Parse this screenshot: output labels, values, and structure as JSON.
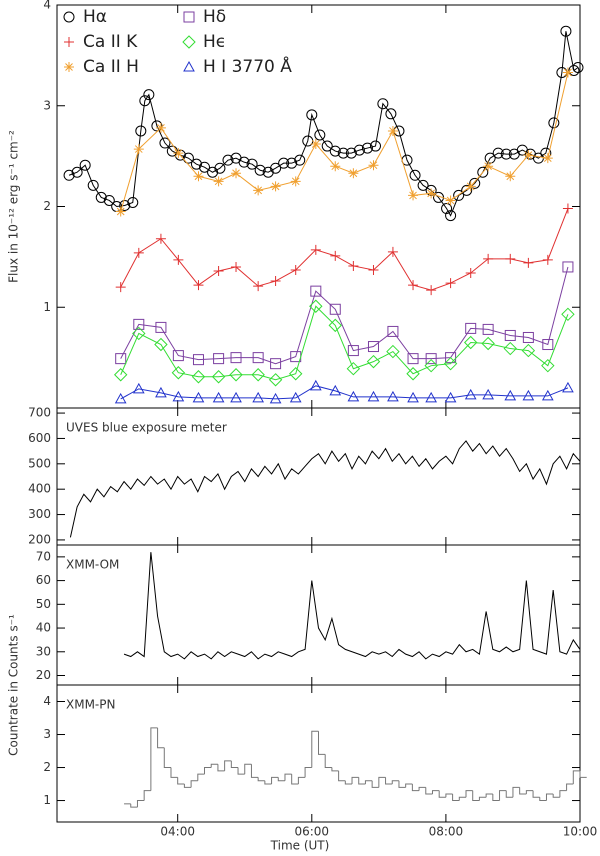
{
  "x_axis": {
    "label": "Time (UT)",
    "xlim": [
      2.2,
      10.0
    ],
    "xticks": [
      {
        "value": 4,
        "label": "04:00"
      },
      {
        "value": 6,
        "label": "06:00"
      },
      {
        "value": 8,
        "label": "08:00"
      },
      {
        "value": 10,
        "label": "10:00"
      }
    ]
  },
  "chart_data": [
    {
      "type": "line",
      "ylabel": "Flux in 10⁻¹² erg s⁻¹ cm⁻²",
      "ylim": [
        0,
        4
      ],
      "yticks": [
        1,
        2,
        3,
        4
      ],
      "legend": "upper left",
      "series": [
        {
          "name": "Hα",
          "color": "#000000",
          "marker": "circle",
          "x": [
            2.38,
            2.5,
            2.62,
            2.74,
            2.86,
            2.98,
            3.09,
            3.21,
            3.33,
            3.45,
            3.51,
            3.57,
            3.69,
            3.81,
            3.92,
            4.04,
            4.16,
            4.28,
            4.4,
            4.52,
            4.63,
            4.75,
            4.87,
            4.99,
            5.11,
            5.23,
            5.35,
            5.46,
            5.58,
            5.7,
            5.82,
            5.94,
            6.0,
            6.12,
            6.23,
            6.35,
            6.47,
            6.59,
            6.71,
            6.83,
            6.95,
            7.06,
            7.18,
            7.3,
            7.42,
            7.54,
            7.66,
            7.78,
            7.89,
            8.01,
            8.07,
            8.19,
            8.31,
            8.43,
            8.55,
            8.66,
            8.78,
            8.9,
            9.02,
            9.14,
            9.26,
            9.38,
            9.49,
            9.61,
            9.73,
            9.79,
            9.91,
            9.97
          ],
          "values": [
            2.31,
            2.34,
            2.41,
            2.21,
            2.09,
            2.06,
            2.0,
            2.01,
            2.04,
            2.75,
            3.05,
            3.11,
            2.8,
            2.63,
            2.55,
            2.51,
            2.48,
            2.42,
            2.39,
            2.34,
            2.38,
            2.46,
            2.48,
            2.44,
            2.42,
            2.36,
            2.34,
            2.38,
            2.43,
            2.43,
            2.46,
            2.65,
            2.91,
            2.71,
            2.6,
            2.55,
            2.53,
            2.53,
            2.56,
            2.58,
            2.6,
            3.02,
            2.92,
            2.75,
            2.46,
            2.31,
            2.21,
            2.16,
            2.09,
            1.98,
            1.91,
            2.11,
            2.16,
            2.23,
            2.34,
            2.48,
            2.53,
            2.52,
            2.52,
            2.56,
            2.52,
            2.48,
            2.53,
            2.83,
            3.33,
            3.74,
            3.35,
            3.38
          ]
        },
        {
          "name": "Ca II K",
          "color": "#e03030",
          "marker": "plus",
          "x": [
            3.15,
            3.42,
            3.75,
            4.01,
            4.31,
            4.61,
            4.87,
            5.2,
            5.46,
            5.76,
            6.06,
            6.35,
            6.62,
            6.92,
            7.21,
            7.51,
            7.78,
            8.07,
            8.37,
            8.63,
            8.96,
            9.23,
            9.52,
            9.82
          ],
          "values": [
            1.2,
            1.54,
            1.68,
            1.47,
            1.22,
            1.36,
            1.4,
            1.21,
            1.26,
            1.37,
            1.57,
            1.51,
            1.41,
            1.37,
            1.55,
            1.22,
            1.17,
            1.24,
            1.34,
            1.48,
            1.48,
            1.44,
            1.47,
            1.98
          ]
        },
        {
          "name": "Ca II H",
          "color": "#f0a030",
          "marker": "asterisk",
          "x": [
            3.15,
            3.42,
            3.75,
            4.01,
            4.31,
            4.61,
            4.87,
            5.2,
            5.46,
            5.76,
            6.06,
            6.35,
            6.62,
            6.92,
            7.21,
            7.51,
            7.78,
            8.07,
            8.37,
            8.63,
            8.96,
            9.23,
            9.52,
            9.82
          ],
          "values": [
            1.95,
            2.57,
            2.78,
            2.53,
            2.3,
            2.25,
            2.33,
            2.16,
            2.2,
            2.25,
            2.62,
            2.4,
            2.33,
            2.41,
            2.75,
            2.11,
            2.13,
            2.06,
            2.2,
            2.4,
            2.3,
            2.51,
            2.48,
            3.33
          ]
        },
        {
          "name": "Hδ",
          "color": "#7b3fa0",
          "marker": "square",
          "x": [
            3.15,
            3.42,
            3.75,
            4.01,
            4.31,
            4.61,
            4.87,
            5.2,
            5.46,
            5.76,
            6.06,
            6.35,
            6.62,
            6.92,
            7.21,
            7.51,
            7.78,
            8.07,
            8.37,
            8.63,
            8.96,
            9.23,
            9.52,
            9.82
          ],
          "values": [
            0.49,
            0.83,
            0.8,
            0.52,
            0.48,
            0.49,
            0.5,
            0.5,
            0.44,
            0.51,
            1.16,
            0.98,
            0.57,
            0.61,
            0.76,
            0.49,
            0.49,
            0.5,
            0.79,
            0.78,
            0.72,
            0.7,
            0.63,
            1.4
          ]
        },
        {
          "name": "Hϵ",
          "color": "#33dd33",
          "marker": "diamond",
          "x": [
            3.15,
            3.42,
            3.75,
            4.01,
            4.31,
            4.61,
            4.87,
            5.2,
            5.46,
            5.76,
            6.06,
            6.35,
            6.62,
            6.92,
            7.21,
            7.51,
            7.78,
            8.07,
            8.37,
            8.63,
            8.96,
            9.23,
            9.52,
            9.82
          ],
          "values": [
            0.33,
            0.74,
            0.63,
            0.35,
            0.31,
            0.31,
            0.33,
            0.33,
            0.28,
            0.34,
            1.01,
            0.82,
            0.39,
            0.46,
            0.56,
            0.34,
            0.42,
            0.44,
            0.65,
            0.64,
            0.59,
            0.57,
            0.42,
            0.93
          ]
        },
        {
          "name": "H I 3770 Å",
          "color": "#2233cc",
          "marker": "triangle",
          "x": [
            3.15,
            3.42,
            3.75,
            4.01,
            4.31,
            4.61,
            4.87,
            5.2,
            5.46,
            5.76,
            6.06,
            6.35,
            6.62,
            6.92,
            7.21,
            7.51,
            7.78,
            8.07,
            8.37,
            8.63,
            8.96,
            9.23,
            9.52,
            9.82
          ],
          "values": [
            0.09,
            0.19,
            0.15,
            0.11,
            0.1,
            0.1,
            0.1,
            0.1,
            0.09,
            0.1,
            0.22,
            0.17,
            0.11,
            0.11,
            0.11,
            0.1,
            0.1,
            0.1,
            0.13,
            0.13,
            0.12,
            0.12,
            0.12,
            0.2
          ]
        }
      ]
    },
    {
      "type": "line",
      "annotation": "UVES blue exposure meter",
      "ylim": [
        180,
        720
      ],
      "yticks": [
        200,
        300,
        400,
        500,
        600,
        700
      ],
      "series": [
        {
          "color": "#000000",
          "x": [
            2.4,
            2.5,
            2.6,
            2.7,
            2.8,
            2.9,
            3.0,
            3.1,
            3.2,
            3.3,
            3.4,
            3.5,
            3.6,
            3.7,
            3.8,
            3.9,
            4.0,
            4.1,
            4.2,
            4.3,
            4.4,
            4.5,
            4.6,
            4.7,
            4.8,
            4.9,
            5.0,
            5.1,
            5.2,
            5.3,
            5.4,
            5.5,
            5.6,
            5.7,
            5.8,
            5.9,
            6.0,
            6.1,
            6.2,
            6.3,
            6.4,
            6.5,
            6.6,
            6.7,
            6.8,
            6.9,
            7.0,
            7.1,
            7.2,
            7.3,
            7.4,
            7.5,
            7.6,
            7.7,
            7.8,
            7.9,
            8.0,
            8.1,
            8.2,
            8.3,
            8.4,
            8.5,
            8.6,
            8.7,
            8.8,
            8.9,
            9.0,
            9.1,
            9.2,
            9.3,
            9.4,
            9.5,
            9.6,
            9.7,
            9.8,
            9.9,
            10.0
          ],
          "values": [
            210,
            330,
            380,
            350,
            400,
            370,
            410,
            390,
            430,
            400,
            440,
            415,
            450,
            420,
            440,
            400,
            450,
            420,
            440,
            390,
            450,
            430,
            460,
            400,
            450,
            470,
            430,
            480,
            450,
            490,
            460,
            500,
            440,
            480,
            460,
            490,
            520,
            540,
            500,
            550,
            510,
            540,
            480,
            530,
            500,
            550,
            520,
            560,
            510,
            540,
            500,
            530,
            490,
            520,
            480,
            510,
            530,
            500,
            560,
            590,
            550,
            580,
            540,
            570,
            530,
            560,
            520,
            470,
            500,
            440,
            480,
            420,
            500,
            530,
            480,
            540,
            510
          ]
        }
      ]
    },
    {
      "type": "line",
      "annotation": "XMM-OM",
      "ylabel": "Countrate in Counts s⁻¹",
      "ylim": [
        16,
        75
      ],
      "yticks": [
        20,
        30,
        40,
        50,
        60,
        70
      ],
      "series": [
        {
          "color": "#000000",
          "x": [
            3.2,
            3.3,
            3.4,
            3.5,
            3.6,
            3.7,
            3.8,
            3.9,
            4.0,
            4.1,
            4.2,
            4.3,
            4.4,
            4.5,
            4.6,
            4.7,
            4.8,
            4.9,
            5.0,
            5.1,
            5.2,
            5.3,
            5.4,
            5.5,
            5.6,
            5.7,
            5.8,
            5.9,
            6.0,
            6.1,
            6.2,
            6.3,
            6.4,
            6.5,
            6.6,
            6.7,
            6.8,
            6.9,
            7.0,
            7.1,
            7.2,
            7.3,
            7.4,
            7.5,
            7.6,
            7.7,
            7.8,
            7.9,
            8.0,
            8.1,
            8.2,
            8.3,
            8.4,
            8.5,
            8.6,
            8.7,
            8.8,
            8.9,
            9.0,
            9.1,
            9.2,
            9.3,
            9.4,
            9.5,
            9.6,
            9.7,
            9.8,
            9.9,
            10.0
          ],
          "values": [
            29,
            28,
            30,
            28,
            72,
            45,
            30,
            28,
            29,
            27,
            30,
            28,
            29,
            27,
            30,
            28,
            30,
            29,
            28,
            30,
            27,
            29,
            28,
            30,
            29,
            28,
            30,
            31,
            60,
            40,
            35,
            44,
            33,
            31,
            30,
            29,
            28,
            30,
            29,
            30,
            28,
            31,
            29,
            28,
            30,
            27,
            29,
            28,
            30,
            29,
            33,
            30,
            31,
            29,
            47,
            31,
            30,
            32,
            30,
            31,
            60,
            31,
            30,
            29,
            56,
            30,
            29,
            35,
            31
          ]
        }
      ]
    },
    {
      "type": "step",
      "annotation": "XMM-PN",
      "ylim": [
        0.35,
        4.5
      ],
      "yticks": [
        1,
        2,
        3,
        4
      ],
      "series": [
        {
          "color": "#777777",
          "x": [
            3.2,
            3.3,
            3.4,
            3.5,
            3.6,
            3.7,
            3.8,
            3.9,
            4.0,
            4.1,
            4.2,
            4.3,
            4.4,
            4.5,
            4.6,
            4.7,
            4.8,
            4.9,
            5.0,
            5.1,
            5.2,
            5.3,
            5.4,
            5.5,
            5.6,
            5.7,
            5.8,
            5.9,
            6.0,
            6.1,
            6.2,
            6.3,
            6.4,
            6.5,
            6.6,
            6.7,
            6.8,
            6.9,
            7.0,
            7.1,
            7.2,
            7.3,
            7.4,
            7.5,
            7.6,
            7.7,
            7.8,
            7.9,
            8.0,
            8.1,
            8.2,
            8.3,
            8.4,
            8.5,
            8.6,
            8.7,
            8.8,
            8.9,
            9.0,
            9.1,
            9.2,
            9.3,
            9.4,
            9.5,
            9.6,
            9.7,
            9.8,
            9.9,
            10.0
          ],
          "values": [
            0.9,
            0.8,
            1.0,
            1.3,
            3.2,
            2.6,
            2.0,
            1.7,
            1.5,
            1.4,
            1.6,
            1.8,
            2.0,
            2.1,
            1.9,
            2.2,
            2.0,
            1.8,
            2.1,
            1.7,
            1.6,
            1.5,
            1.7,
            1.6,
            1.8,
            1.5,
            1.7,
            2.0,
            3.1,
            2.4,
            2.0,
            1.9,
            1.6,
            1.5,
            1.7,
            1.5,
            1.6,
            1.4,
            1.7,
            1.5,
            1.6,
            1.4,
            1.5,
            1.3,
            1.4,
            1.2,
            1.3,
            1.1,
            1.2,
            1.0,
            1.1,
            1.3,
            1.0,
            1.1,
            1.2,
            1.0,
            1.3,
            1.1,
            1.4,
            1.2,
            1.3,
            1.1,
            1.0,
            1.2,
            1.1,
            1.3,
            1.5,
            1.9,
            1.7
          ]
        }
      ]
    }
  ]
}
